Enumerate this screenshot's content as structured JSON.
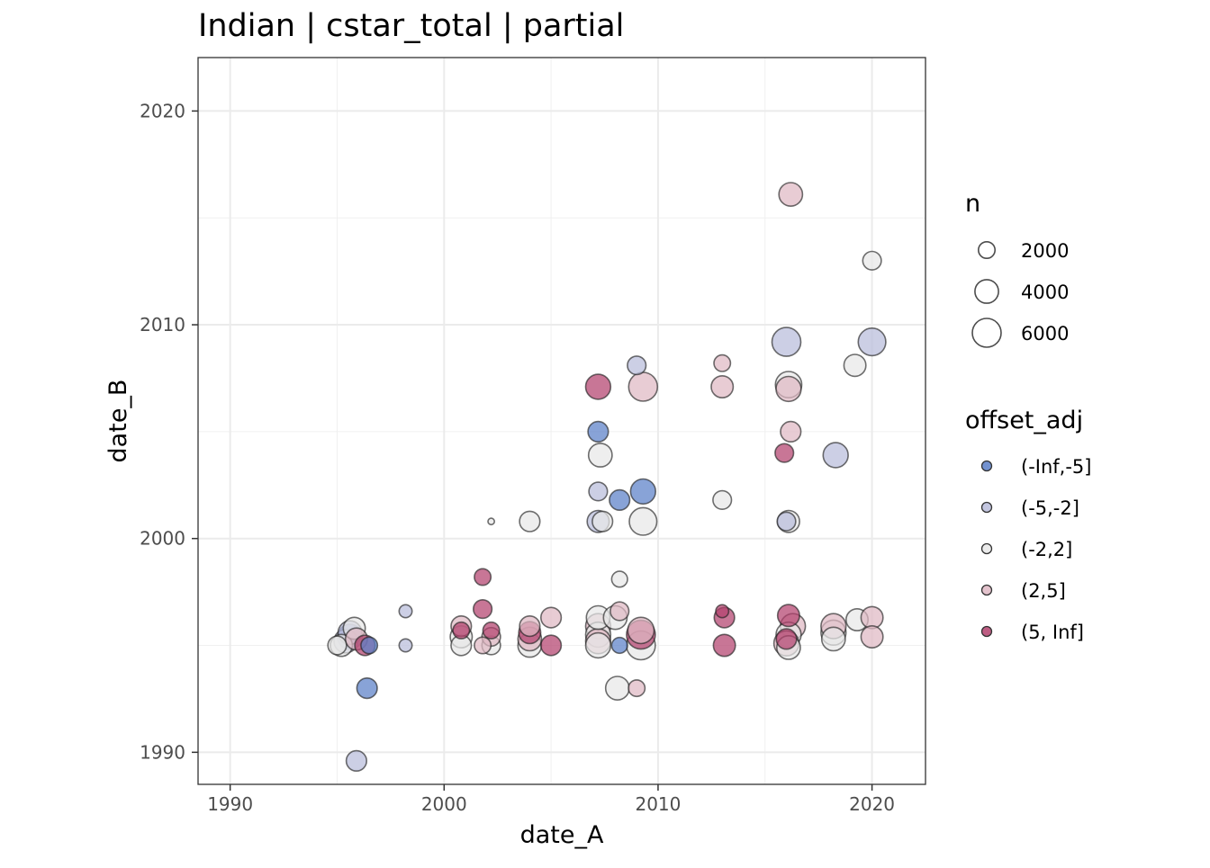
{
  "chart_data": {
    "type": "scatter",
    "title": "Indian | cstar_total | partial",
    "xlabel": "date_A",
    "ylabel": "date_B",
    "xlim": [
      1988.5,
      2022.5
    ],
    "ylim": [
      1988.5,
      2022.5
    ],
    "x_ticks": [
      1990,
      2000,
      2010,
      2020
    ],
    "y_ticks": [
      1990,
      2000,
      2010,
      2020
    ],
    "x_tick_labels": [
      "1990",
      "2000",
      "2010",
      "2020"
    ],
    "y_tick_labels": [
      "1990",
      "2000",
      "2010",
      "2020"
    ],
    "grid": true,
    "legend_position": "right",
    "size_legend": {
      "title": "n",
      "values": [
        2000,
        4000,
        6000
      ],
      "labels": [
        "2000",
        "4000",
        "6000"
      ]
    },
    "color_legend": {
      "title": "offset_adj",
      "categories": [
        "(-Inf,-5]",
        "(-5,-2]",
        "(-2,2]",
        "(2,5]",
        "(5, Inf]"
      ],
      "colors": [
        "#5a7fc8",
        "#b9bcdb",
        "#e8e8e8",
        "#dfb9c4",
        "#b3416d"
      ]
    },
    "points": [
      {
        "x": 1995.0,
        "y": 1995.0,
        "n": 2500,
        "group": "(-2,2]"
      },
      {
        "x": 1995.2,
        "y": 1995.0,
        "n": 3500,
        "group": "(-2,2]"
      },
      {
        "x": 1995.4,
        "y": 1995.2,
        "n": 4000,
        "group": "(-5,-2]"
      },
      {
        "x": 1995.6,
        "y": 1995.4,
        "n": 4500,
        "group": "(-Inf,-5]"
      },
      {
        "x": 1995.6,
        "y": 1995.6,
        "n": 4000,
        "group": "(-5,-2]"
      },
      {
        "x": 1995.8,
        "y": 1995.8,
        "n": 3500,
        "group": "(-2,2]"
      },
      {
        "x": 1995.9,
        "y": 1995.3,
        "n": 3500,
        "group": "(2,5]"
      },
      {
        "x": 1996.3,
        "y": 1995.0,
        "n": 3000,
        "group": "(5, Inf]"
      },
      {
        "x": 1996.5,
        "y": 1995.0,
        "n": 2000,
        "group": "(-Inf,-5]"
      },
      {
        "x": 1996.4,
        "y": 1993.0,
        "n": 3000,
        "group": "(-Inf,-5]"
      },
      {
        "x": 1995.9,
        "y": 1989.6,
        "n": 3000,
        "group": "(-5,-2]"
      },
      {
        "x": 1998.2,
        "y": 1996.6,
        "n": 1200,
        "group": "(-5,-2]"
      },
      {
        "x": 1998.2,
        "y": 1995.0,
        "n": 1200,
        "group": "(-5,-2]"
      },
      {
        "x": 2000.8,
        "y": 1995.0,
        "n": 3000,
        "group": "(-2,2]"
      },
      {
        "x": 2000.8,
        "y": 1995.4,
        "n": 3500,
        "group": "(-2,2]"
      },
      {
        "x": 2000.8,
        "y": 1995.9,
        "n": 3000,
        "group": "(2,5]"
      },
      {
        "x": 2000.8,
        "y": 1995.7,
        "n": 2000,
        "group": "(5, Inf]"
      },
      {
        "x": 2001.8,
        "y": 1998.2,
        "n": 2000,
        "group": "(5, Inf]"
      },
      {
        "x": 2001.8,
        "y": 1996.7,
        "n": 2500,
        "group": "(5, Inf]"
      },
      {
        "x": 2001.8,
        "y": 1995.0,
        "n": 2000,
        "group": "(2,5]"
      },
      {
        "x": 2002.2,
        "y": 1995.0,
        "n": 2500,
        "group": "(-2,2]"
      },
      {
        "x": 2002.2,
        "y": 1995.4,
        "n": 2500,
        "group": "(2,5]"
      },
      {
        "x": 2002.2,
        "y": 1995.7,
        "n": 2000,
        "group": "(5, Inf]"
      },
      {
        "x": 2002.2,
        "y": 2000.8,
        "n": 300,
        "group": "(-2,2]"
      },
      {
        "x": 2004.0,
        "y": 2000.8,
        "n": 3000,
        "group": "(-2,2]"
      },
      {
        "x": 2004.0,
        "y": 1995.0,
        "n": 4000,
        "group": "(-2,2]"
      },
      {
        "x": 2004.0,
        "y": 1995.3,
        "n": 4000,
        "group": "(2,5]"
      },
      {
        "x": 2004.0,
        "y": 1995.6,
        "n": 3500,
        "group": "(5, Inf]"
      },
      {
        "x": 2004.0,
        "y": 1995.9,
        "n": 3000,
        "group": "(2,5]"
      },
      {
        "x": 2005.0,
        "y": 1996.3,
        "n": 3000,
        "group": "(2,5]"
      },
      {
        "x": 2005.0,
        "y": 1995.0,
        "n": 3000,
        "group": "(5, Inf]"
      },
      {
        "x": 2007.2,
        "y": 2007.1,
        "n": 4500,
        "group": "(5, Inf]"
      },
      {
        "x": 2007.2,
        "y": 2005.0,
        "n": 3000,
        "group": "(-Inf,-5]"
      },
      {
        "x": 2007.3,
        "y": 2003.9,
        "n": 4000,
        "group": "(-2,2]"
      },
      {
        "x": 2007.2,
        "y": 2002.2,
        "n": 2500,
        "group": "(-5,-2]"
      },
      {
        "x": 2007.2,
        "y": 2000.8,
        "n": 3500,
        "group": "(-5,-2]"
      },
      {
        "x": 2007.4,
        "y": 2000.8,
        "n": 3000,
        "group": "(-2,2]"
      },
      {
        "x": 2007.2,
        "y": 1996.3,
        "n": 4000,
        "group": "(-2,2]"
      },
      {
        "x": 2007.2,
        "y": 1995.9,
        "n": 4500,
        "group": "(2,5]"
      },
      {
        "x": 2007.2,
        "y": 1995.5,
        "n": 4500,
        "group": "(-2,2]"
      },
      {
        "x": 2007.2,
        "y": 1995.2,
        "n": 4500,
        "group": "(2,5]"
      },
      {
        "x": 2007.2,
        "y": 1995.0,
        "n": 4500,
        "group": "(-2,2]"
      },
      {
        "x": 2008.2,
        "y": 1998.1,
        "n": 1800,
        "group": "(-2,2]"
      },
      {
        "x": 2008.2,
        "y": 1996.6,
        "n": 2500,
        "group": "(2,5]"
      },
      {
        "x": 2008.0,
        "y": 1996.3,
        "n": 4000,
        "group": "(-2,2]"
      },
      {
        "x": 2008.2,
        "y": 1995.0,
        "n": 1800,
        "group": "(-Inf,-5]"
      },
      {
        "x": 2008.2,
        "y": 2001.8,
        "n": 3000,
        "group": "(-Inf,-5]"
      },
      {
        "x": 2008.1,
        "y": 1993.0,
        "n": 4000,
        "group": "(-2,2]"
      },
      {
        "x": 2009.0,
        "y": 1993.0,
        "n": 2000,
        "group": "(2,5]"
      },
      {
        "x": 2009.0,
        "y": 2008.1,
        "n": 2500,
        "group": "(-5,-2]"
      },
      {
        "x": 2009.3,
        "y": 2007.1,
        "n": 6000,
        "group": "(2,5]"
      },
      {
        "x": 2009.3,
        "y": 2002.2,
        "n": 4500,
        "group": "(-Inf,-5]"
      },
      {
        "x": 2009.3,
        "y": 2000.8,
        "n": 5500,
        "group": "(-2,2]"
      },
      {
        "x": 2009.2,
        "y": 1995.0,
        "n": 6000,
        "group": "(-2,2]"
      },
      {
        "x": 2009.2,
        "y": 1995.5,
        "n": 6000,
        "group": "(5, Inf]"
      },
      {
        "x": 2009.2,
        "y": 1995.7,
        "n": 5000,
        "group": "(2,5]"
      },
      {
        "x": 2013.0,
        "y": 2008.2,
        "n": 2000,
        "group": "(2,5]"
      },
      {
        "x": 2013.0,
        "y": 2007.1,
        "n": 3500,
        "group": "(2,5]"
      },
      {
        "x": 2013.0,
        "y": 2001.8,
        "n": 2500,
        "group": "(-2,2]"
      },
      {
        "x": 2013.0,
        "y": 1996.6,
        "n": 1200,
        "group": "(5, Inf]"
      },
      {
        "x": 2013.1,
        "y": 1996.3,
        "n": 3000,
        "group": "(5, Inf]"
      },
      {
        "x": 2013.1,
        "y": 1995.0,
        "n": 3500,
        "group": "(5, Inf]"
      },
      {
        "x": 2016.2,
        "y": 2016.1,
        "n": 4000,
        "group": "(2,5]"
      },
      {
        "x": 2016.0,
        "y": 2009.2,
        "n": 6000,
        "group": "(-5,-2]"
      },
      {
        "x": 2016.1,
        "y": 2007.2,
        "n": 5000,
        "group": "(-2,2]"
      },
      {
        "x": 2016.1,
        "y": 2007.0,
        "n": 4500,
        "group": "(2,5]"
      },
      {
        "x": 2016.2,
        "y": 2005.0,
        "n": 3000,
        "group": "(2,5]"
      },
      {
        "x": 2015.9,
        "y": 2004.0,
        "n": 2500,
        "group": "(5, Inf]"
      },
      {
        "x": 2016.1,
        "y": 2000.8,
        "n": 3500,
        "group": "(-2,2]"
      },
      {
        "x": 2016.0,
        "y": 2000.8,
        "n": 2500,
        "group": "(-5,-2]"
      },
      {
        "x": 2016.1,
        "y": 1996.4,
        "n": 3500,
        "group": "(5, Inf]"
      },
      {
        "x": 2016.3,
        "y": 1995.9,
        "n": 4500,
        "group": "(2,5]"
      },
      {
        "x": 2016.1,
        "y": 1995.5,
        "n": 4500,
        "group": "(-2,2]"
      },
      {
        "x": 2016.0,
        "y": 1995.1,
        "n": 4500,
        "group": "(2,5]"
      },
      {
        "x": 2016.0,
        "y": 1995.3,
        "n": 3000,
        "group": "(5, Inf]"
      },
      {
        "x": 2016.1,
        "y": 1994.9,
        "n": 4000,
        "group": "(-2,2]"
      },
      {
        "x": 2018.3,
        "y": 2003.9,
        "n": 4500,
        "group": "(-5,-2]"
      },
      {
        "x": 2018.2,
        "y": 1995.3,
        "n": 4000,
        "group": "(-2,2]"
      },
      {
        "x": 2018.2,
        "y": 1995.6,
        "n": 4500,
        "group": "(-2,2]"
      },
      {
        "x": 2018.2,
        "y": 1995.9,
        "n": 4500,
        "group": "(2,5]"
      },
      {
        "x": 2019.2,
        "y": 2008.1,
        "n": 3500,
        "group": "(-2,2]"
      },
      {
        "x": 2019.3,
        "y": 1996.2,
        "n": 3500,
        "group": "(-2,2]"
      },
      {
        "x": 2020.0,
        "y": 2013.0,
        "n": 2500,
        "group": "(-2,2]"
      },
      {
        "x": 2020.0,
        "y": 2009.2,
        "n": 5500,
        "group": "(-5,-2]"
      },
      {
        "x": 2020.0,
        "y": 1996.3,
        "n": 3500,
        "group": "(2,5]"
      },
      {
        "x": 2020.0,
        "y": 1995.4,
        "n": 3500,
        "group": "(2,5]"
      }
    ]
  }
}
